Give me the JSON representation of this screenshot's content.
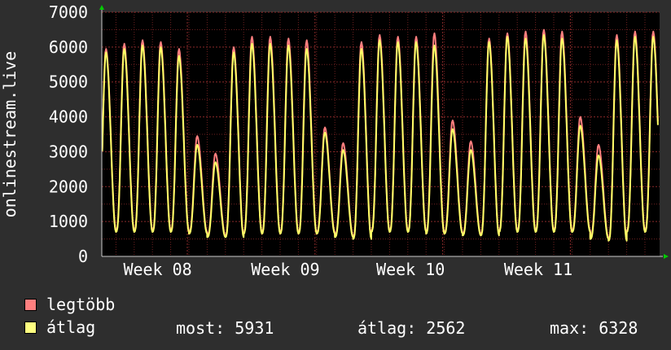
{
  "chart_data": {
    "type": "line",
    "ylabel": "onlinestream.live",
    "ylim": [
      0,
      7000
    ],
    "y_ticks": [
      0,
      1000,
      2000,
      3000,
      4000,
      5000,
      6000,
      7000
    ],
    "x_ticks": [
      "Week 08",
      "Week 09",
      "Week 10",
      "Week 11"
    ],
    "grid": true,
    "background": "#000000",
    "grid_color": "#6e2020",
    "axis_arrow_color": "#00cc00",
    "day_peaks": [
      {
        "max": 5950,
        "avg": 5850
      },
      {
        "max": 6100,
        "avg": 5950
      },
      {
        "max": 6200,
        "avg": 6050
      },
      {
        "max": 6150,
        "avg": 6000
      },
      {
        "max": 5950,
        "avg": 5750
      },
      {
        "max": 3450,
        "avg": 3200
      },
      {
        "max": 2950,
        "avg": 2700
      },
      {
        "max": 6000,
        "avg": 5850
      },
      {
        "max": 6300,
        "avg": 6100
      },
      {
        "max": 6300,
        "avg": 6100
      },
      {
        "max": 6250,
        "avg": 6050
      },
      {
        "max": 6200,
        "avg": 5950
      },
      {
        "max": 3700,
        "avg": 3550
      },
      {
        "max": 3250,
        "avg": 3050
      },
      {
        "max": 6150,
        "avg": 5950
      },
      {
        "max": 6350,
        "avg": 6200
      },
      {
        "max": 6300,
        "avg": 6150
      },
      {
        "max": 6300,
        "avg": 6150
      },
      {
        "max": 6400,
        "avg": 6050
      },
      {
        "max": 3900,
        "avg": 3650
      },
      {
        "max": 3300,
        "avg": 3050
      },
      {
        "max": 6250,
        "avg": 6150
      },
      {
        "max": 6400,
        "avg": 6300
      },
      {
        "max": 6450,
        "avg": 6250
      },
      {
        "max": 6500,
        "avg": 6350
      },
      {
        "max": 6450,
        "avg": 6250
      },
      {
        "max": 4000,
        "avg": 3750
      },
      {
        "max": 3200,
        "avg": 2900
      },
      {
        "max": 6350,
        "avg": 6200
      },
      {
        "max": 6450,
        "avg": 6300
      },
      {
        "max": 6450,
        "avg": 6300
      }
    ],
    "day_trough_avg": [
      700,
      700,
      700,
      700,
      700,
      650,
      550,
      550,
      650,
      650,
      650,
      650,
      650,
      550,
      500,
      700,
      700,
      700,
      650,
      650,
      600,
      600,
      700,
      700,
      700,
      700,
      700,
      500,
      450,
      700,
      700
    ],
    "series": [
      {
        "name": "legtöbb",
        "color": "#ff7f7f",
        "key": "max"
      },
      {
        "name": "átlag",
        "color": "#ffff66",
        "key": "avg"
      }
    ]
  },
  "legend": [
    {
      "label": "legtöbb",
      "color": "#ff7f7f"
    },
    {
      "label": "átlag",
      "color": "#ffff80"
    }
  ],
  "stats": {
    "most": "most: 5931",
    "avg": "átlag: 2562",
    "max": "max: 6328"
  }
}
